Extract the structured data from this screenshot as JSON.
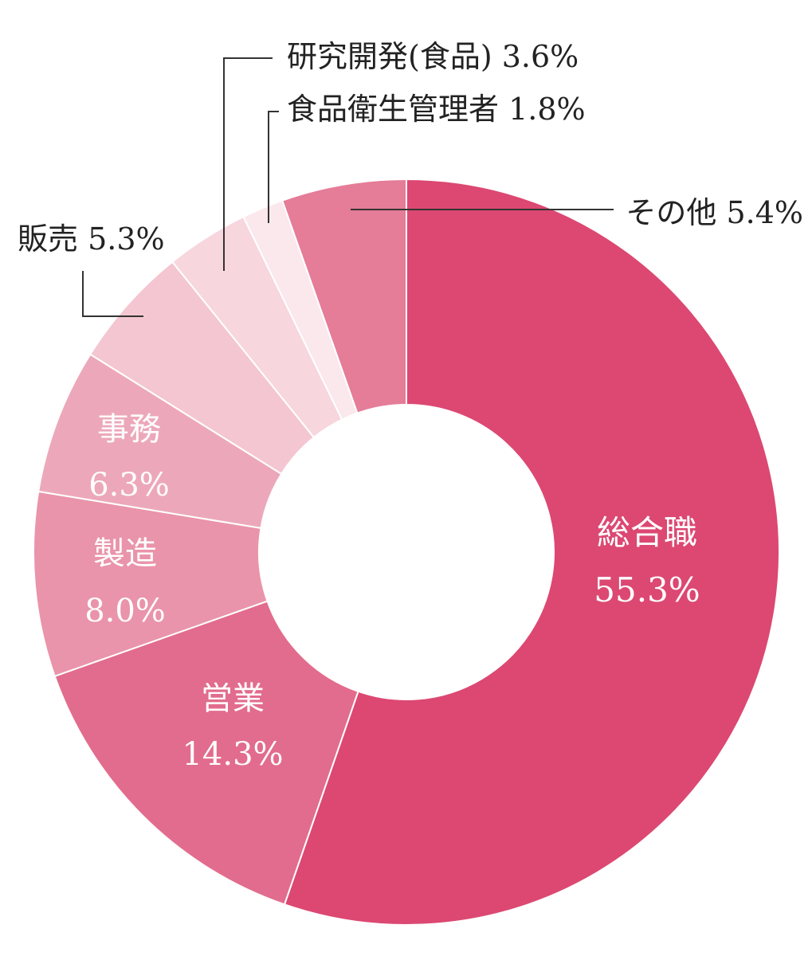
{
  "chart_data": {
    "type": "pie",
    "donut": true,
    "title": "",
    "slices": [
      {
        "label": "総合職",
        "value": 55.3,
        "value_text": "55.3%",
        "color": "#dc4872"
      },
      {
        "label": "営業",
        "value": 14.3,
        "value_text": "14.3%",
        "color": "#e26c8d"
      },
      {
        "label": "製造",
        "value": 8.0,
        "value_text": "8.0%",
        "color": "#e994aa"
      },
      {
        "label": "事務",
        "value": 6.3,
        "value_text": "6.3%",
        "color": "#eca8ba"
      },
      {
        "label": "販売",
        "value": 5.3,
        "value_text": "5.3%",
        "color": "#f4c6d1"
      },
      {
        "label": "研究開発(食品)",
        "value": 3.6,
        "value_text": "3.6%",
        "color": "#f7d6de"
      },
      {
        "label": "食品衛生管理者",
        "value": 1.8,
        "value_text": "1.8%",
        "color": "#fae8ed"
      },
      {
        "label": "その他",
        "value": 5.4,
        "value_text": "5.4%",
        "color": "#e57c98"
      }
    ],
    "start": "12 o'clock",
    "direction": "clockwise"
  }
}
